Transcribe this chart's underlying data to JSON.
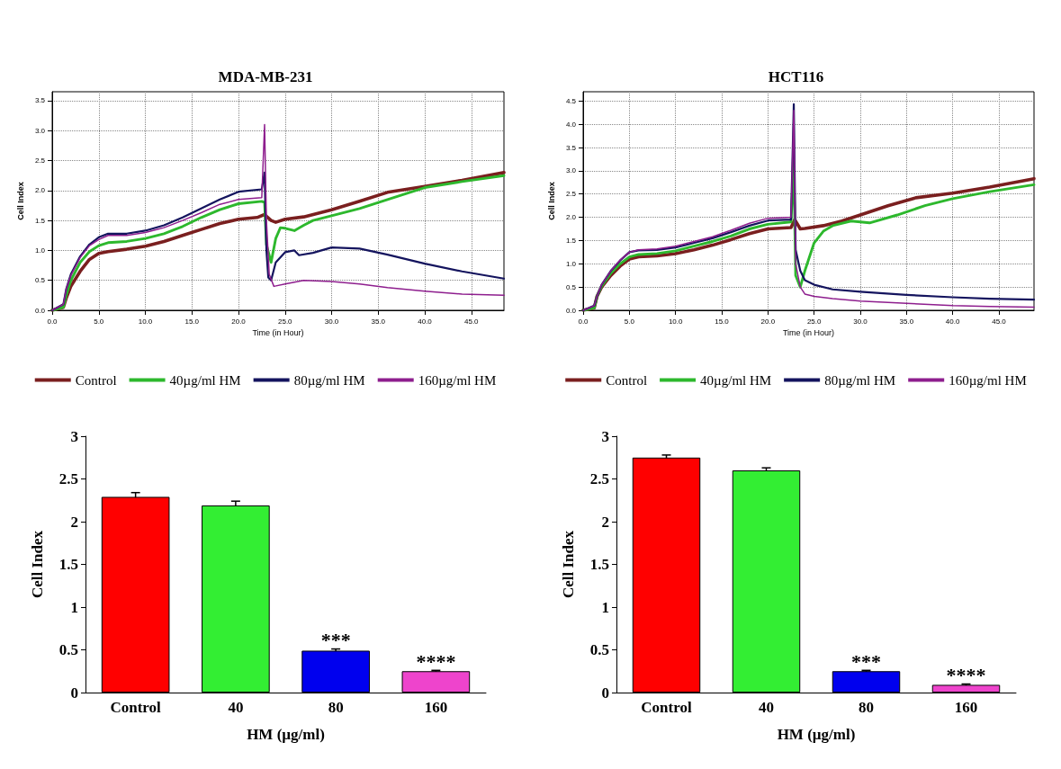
{
  "chart_data": [
    {
      "type": "line",
      "title": "MDA-MB-231",
      "xlabel": "Time (in Hour)",
      "ylabel": "Cell Index",
      "xlim": [
        0,
        48.5
      ],
      "ylim": [
        0,
        3.65
      ],
      "xticks": [
        {
          "value": 0,
          "label": "0.0"
        },
        {
          "value": 5,
          "label": "5.0"
        },
        {
          "value": 10,
          "label": "10.0"
        },
        {
          "value": 15,
          "label": "15.0"
        },
        {
          "value": 20,
          "label": "20.0"
        },
        {
          "value": 25,
          "label": "25.0"
        },
        {
          "value": 30,
          "label": "30.0"
        },
        {
          "value": 35,
          "label": "35.0"
        },
        {
          "value": 40,
          "label": "40.0"
        },
        {
          "value": 45,
          "label": "45.0"
        }
      ],
      "yticks": [
        {
          "value": 0,
          "label": "0.0"
        },
        {
          "value": 0.5,
          "label": "0.5"
        },
        {
          "value": 1,
          "label": "1.0"
        },
        {
          "value": 1.5,
          "label": "1.5"
        },
        {
          "value": 2,
          "label": "2.0"
        },
        {
          "value": 2.5,
          "label": "2.5"
        },
        {
          "value": 3,
          "label": "3.0"
        },
        {
          "value": 3.5,
          "label": "3.5"
        }
      ],
      "grid": true,
      "legend": "bottom",
      "line_style": "solid",
      "series": [
        {
          "name": "Control",
          "color": "#7a1f1f",
          "x": [
            0,
            1.2,
            1.5,
            2,
            3,
            4,
            5,
            6,
            8,
            10,
            12,
            14,
            16,
            18,
            20,
            22,
            22.8,
            23.5,
            24,
            25,
            27,
            30,
            33,
            36,
            40,
            44,
            48.5
          ],
          "values": [
            0,
            0.05,
            0.2,
            0.4,
            0.65,
            0.85,
            0.95,
            0.98,
            1.02,
            1.07,
            1.15,
            1.25,
            1.35,
            1.45,
            1.52,
            1.55,
            1.6,
            1.5,
            1.47,
            1.52,
            1.56,
            1.68,
            1.82,
            1.97,
            2.07,
            2.17,
            2.3
          ]
        },
        {
          "name": "40µg/ml HM",
          "color": "#2db82d",
          "x": [
            0,
            1.2,
            1.5,
            2,
            3,
            4,
            5,
            6,
            8,
            10,
            12,
            14,
            16,
            18,
            20,
            22.5,
            22.8,
            23,
            23.5,
            24,
            24.5,
            25,
            26,
            27,
            28,
            30,
            33,
            36,
            40,
            44,
            48.5
          ],
          "values": [
            0,
            0.05,
            0.25,
            0.5,
            0.8,
            0.98,
            1.08,
            1.13,
            1.15,
            1.2,
            1.28,
            1.4,
            1.55,
            1.68,
            1.78,
            1.82,
            1.8,
            1.1,
            0.8,
            1.2,
            1.38,
            1.37,
            1.33,
            1.42,
            1.5,
            1.58,
            1.7,
            1.85,
            2.05,
            2.15,
            2.25
          ]
        },
        {
          "name": "80µg/ml HM",
          "color": "#14145e",
          "x": [
            0,
            1.2,
            1.5,
            2,
            3,
            4,
            5,
            6,
            8,
            10,
            12,
            14,
            16,
            18,
            20,
            22.5,
            22.8,
            23,
            23.2,
            23.5,
            24,
            25,
            26,
            26.5,
            28,
            30,
            33,
            36,
            40,
            44,
            48.5
          ],
          "values": [
            0,
            0.1,
            0.35,
            0.6,
            0.9,
            1.1,
            1.22,
            1.28,
            1.28,
            1.33,
            1.42,
            1.55,
            1.7,
            1.85,
            1.98,
            2.02,
            2.3,
            1,
            0.55,
            0.5,
            0.8,
            0.97,
            1,
            0.92,
            0.96,
            1.05,
            1.03,
            0.93,
            0.78,
            0.65,
            0.53
          ]
        },
        {
          "name": "160µg/ml HM",
          "color": "#8e1e8e",
          "x": [
            0,
            1.2,
            1.5,
            2,
            3,
            4,
            5,
            6,
            8,
            10,
            12,
            14,
            16,
            18,
            20,
            22.5,
            22.8,
            23,
            23.3,
            23.8,
            25,
            27,
            30,
            33,
            36,
            40,
            44,
            48.5
          ],
          "values": [
            0,
            0.1,
            0.35,
            0.58,
            0.88,
            1.08,
            1.18,
            1.25,
            1.25,
            1.3,
            1.38,
            1.5,
            1.63,
            1.77,
            1.85,
            1.88,
            3.1,
            1.5,
            0.6,
            0.4,
            0.44,
            0.5,
            0.48,
            0.44,
            0.38,
            0.32,
            0.27,
            0.25
          ]
        }
      ]
    },
    {
      "type": "line",
      "title": "HCT116",
      "xlabel": "Time (in Hour)",
      "ylabel": "Cell Index",
      "xlim": [
        0,
        48.8
      ],
      "ylim": [
        0,
        4.7
      ],
      "xticks": [
        {
          "value": 0,
          "label": "0.0"
        },
        {
          "value": 5,
          "label": "5.0"
        },
        {
          "value": 10,
          "label": "10.0"
        },
        {
          "value": 15,
          "label": "15.0"
        },
        {
          "value": 20,
          "label": "20.0"
        },
        {
          "value": 25,
          "label": "25.0"
        },
        {
          "value": 30,
          "label": "30.0"
        },
        {
          "value": 35,
          "label": "35.0"
        },
        {
          "value": 40,
          "label": "40.0"
        },
        {
          "value": 45,
          "label": "45.0"
        }
      ],
      "yticks": [
        {
          "value": 0,
          "label": "0.0"
        },
        {
          "value": 0.5,
          "label": "0.5"
        },
        {
          "value": 1,
          "label": "1.0"
        },
        {
          "value": 1.5,
          "label": "1.5"
        },
        {
          "value": 2,
          "label": "2.0"
        },
        {
          "value": 2.5,
          "label": "2.5"
        },
        {
          "value": 3,
          "label": "3.0"
        },
        {
          "value": 3.5,
          "label": "3.5"
        },
        {
          "value": 4,
          "label": "4.0"
        },
        {
          "value": 4.5,
          "label": "4.5"
        }
      ],
      "grid": true,
      "legend": "bottom",
      "line_style": "solid",
      "series": [
        {
          "name": "Control",
          "color": "#7a1f1f",
          "x": [
            0,
            1.2,
            1.5,
            2,
            3,
            4,
            5,
            6,
            8,
            10,
            12,
            14,
            16,
            18,
            20,
            22.5,
            22.9,
            23.5,
            24,
            26,
            28,
            30,
            33,
            36,
            40,
            44,
            48.8
          ],
          "values": [
            0,
            0.05,
            0.3,
            0.5,
            0.75,
            0.95,
            1.1,
            1.15,
            1.17,
            1.22,
            1.3,
            1.4,
            1.52,
            1.65,
            1.75,
            1.78,
            1.95,
            1.75,
            1.76,
            1.82,
            1.92,
            2.05,
            2.25,
            2.42,
            2.52,
            2.65,
            2.83
          ]
        },
        {
          "name": "40µg/ml HM",
          "color": "#2db82d",
          "x": [
            0,
            1.2,
            1.5,
            2,
            3,
            4,
            5,
            6,
            8,
            10,
            12,
            14,
            16,
            18,
            20,
            22.5,
            22.8,
            23,
            23.5,
            24,
            25,
            26,
            27,
            29,
            31,
            34,
            37,
            40,
            44,
            48.8
          ],
          "values": [
            0,
            0.05,
            0.3,
            0.52,
            0.8,
            1,
            1.15,
            1.2,
            1.22,
            1.28,
            1.38,
            1.48,
            1.6,
            1.75,
            1.85,
            1.9,
            3.2,
            0.75,
            0.5,
            0.85,
            1.45,
            1.7,
            1.82,
            1.92,
            1.88,
            2.05,
            2.25,
            2.4,
            2.55,
            2.7
          ]
        },
        {
          "name": "80µg/ml HM",
          "color": "#14145e",
          "x": [
            0,
            1.2,
            1.5,
            2,
            3,
            4,
            5,
            6,
            8,
            10,
            12,
            14,
            16,
            18,
            20,
            22.5,
            22.8,
            23,
            23.5,
            24,
            25,
            27,
            30,
            35,
            40,
            44,
            48.8
          ],
          "values": [
            0,
            0.1,
            0.3,
            0.55,
            0.85,
            1.07,
            1.25,
            1.29,
            1.3,
            1.35,
            1.45,
            1.55,
            1.68,
            1.82,
            1.93,
            1.95,
            4.43,
            1.3,
            0.85,
            0.65,
            0.55,
            0.45,
            0.4,
            0.33,
            0.28,
            0.25,
            0.23
          ]
        },
        {
          "name": "160µg/ml HM",
          "color": "#8e1e8e",
          "x": [
            0,
            1.2,
            1.5,
            2,
            3,
            4,
            5,
            6,
            8,
            10,
            12,
            14,
            16,
            18,
            20,
            22.5,
            22.8,
            23,
            23.5,
            24,
            25,
            27,
            30,
            35,
            40,
            44,
            48.8
          ],
          "values": [
            0,
            0.1,
            0.3,
            0.55,
            0.85,
            1.08,
            1.25,
            1.3,
            1.32,
            1.38,
            1.48,
            1.58,
            1.72,
            1.87,
            1.98,
            2,
            4.3,
            1,
            0.5,
            0.35,
            0.3,
            0.25,
            0.2,
            0.15,
            0.1,
            0.08,
            0.07
          ]
        }
      ]
    },
    {
      "type": "bar",
      "xlabel": "HM (µg/ml)",
      "ylabel": "Cell Index",
      "categories": [
        "Control",
        "40",
        "80",
        "160"
      ],
      "values": [
        2.29,
        2.19,
        0.49,
        0.25
      ],
      "colors": [
        "#ff0000",
        "#33ee33",
        "#0000ee",
        "#ee44cc"
      ],
      "errors": [
        0.05,
        0.05,
        0.02,
        0.01
      ],
      "ylim": [
        0,
        3
      ],
      "yticks": [
        0,
        0.5,
        1,
        1.5,
        2,
        2.5,
        3
      ],
      "grid": false,
      "annotations": [
        {
          "text": "***",
          "x": "80",
          "y": 0.51
        },
        {
          "text": "****",
          "x": "160",
          "y": 0.26
        }
      ]
    },
    {
      "type": "bar",
      "xlabel": "HM (µg/ml)",
      "ylabel": "Cell Index",
      "categories": [
        "Control",
        "40",
        "80",
        "160"
      ],
      "values": [
        2.75,
        2.6,
        0.25,
        0.09
      ],
      "colors": [
        "#ff0000",
        "#33ee33",
        "#0000ee",
        "#ee44cc"
      ],
      "errors": [
        0.03,
        0.03,
        0.01,
        0.01
      ],
      "ylim": [
        0,
        3
      ],
      "yticks": [
        0,
        0.5,
        1,
        1.5,
        2,
        2.5,
        3
      ],
      "grid": false,
      "annotations": [
        {
          "text": "***",
          "x": "80",
          "y": 0.26
        },
        {
          "text": "****",
          "x": "160",
          "y": 0.1
        }
      ]
    }
  ]
}
